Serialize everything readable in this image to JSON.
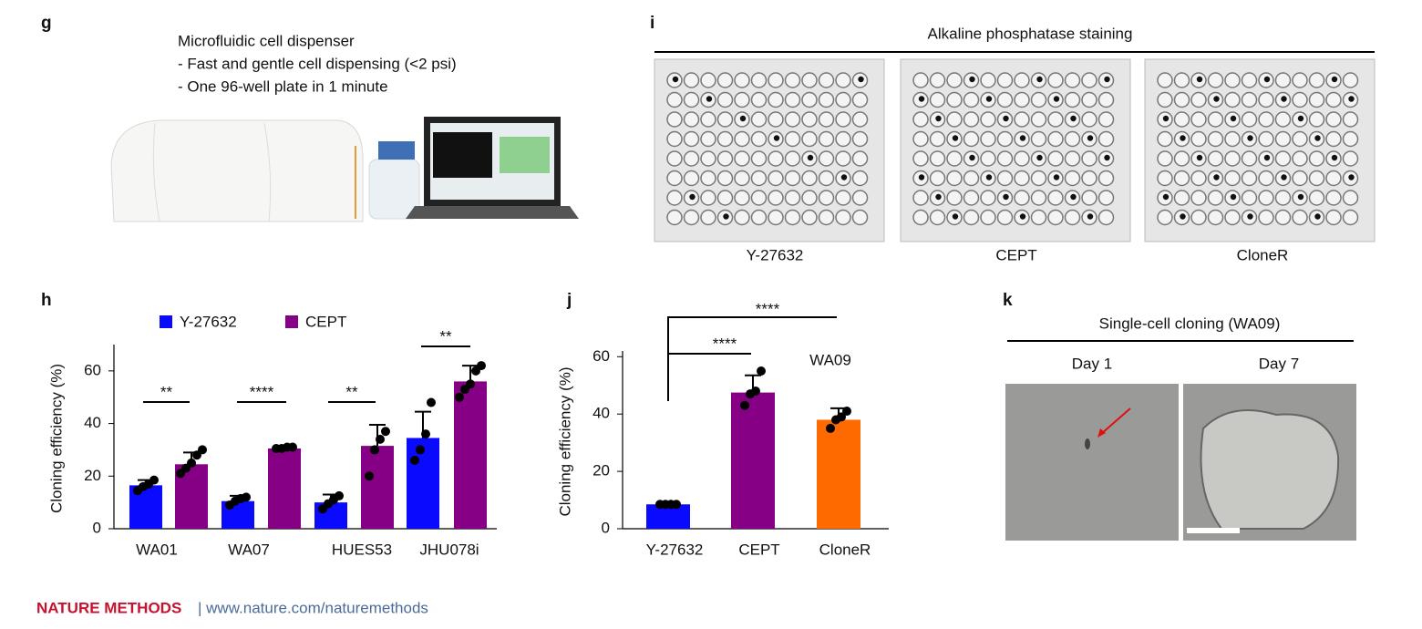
{
  "chart_data": [
    {
      "type": "bar",
      "panel": "h",
      "ylabel": "Cloning efficiency (%)",
      "categories": [
        "WA01",
        "WA07",
        "HUES53",
        "JHU078i"
      ],
      "series": [
        {
          "name": "Y-27632",
          "color": "#0a0aff",
          "values": [
            16.5,
            10.5,
            10,
            34.5
          ],
          "errors": [
            2,
            2,
            3,
            10
          ],
          "points": [
            [
              14.5,
              16,
              17,
              18.5
            ],
            [
              9,
              10.5,
              11.5,
              12
            ],
            [
              7.5,
              9.5,
              11,
              12.5
            ],
            [
              26,
              30,
              36,
              48
            ]
          ]
        },
        {
          "name": "CEPT",
          "color": "#850085",
          "values": [
            24.5,
            30.5,
            31.5,
            56
          ],
          "errors": [
            4.5,
            0.5,
            8,
            6
          ],
          "points": [
            [
              21,
              23,
              25,
              28,
              30
            ],
            [
              30.5,
              30.5,
              31,
              31
            ],
            [
              20,
              30,
              34,
              37
            ],
            [
              50,
              53,
              55,
              60,
              62
            ]
          ]
        }
      ],
      "annotations": [
        "**",
        "****",
        "**",
        "**"
      ],
      "ylim": [
        0,
        70
      ],
      "yticks": [
        0,
        20,
        40,
        60
      ]
    },
    {
      "type": "bar",
      "panel": "j",
      "ylabel": "Cloning efficiency (%)",
      "categories": [
        "Y-27632",
        "CEPT",
        "CloneR"
      ],
      "values": [
        8.5,
        47.5,
        38
      ],
      "errors": [
        0.5,
        6,
        4
      ],
      "colors": [
        "#0a0aff",
        "#850085",
        "#ff6a00"
      ],
      "points": [
        [
          8.5,
          8.5,
          8.5,
          8.5
        ],
        [
          43,
          47,
          48,
          55
        ],
        [
          35,
          38,
          39,
          41
        ]
      ],
      "annotations": [
        "****",
        "****",
        "WA09"
      ],
      "ylim": [
        0,
        62
      ],
      "yticks": [
        0,
        20,
        40,
        60
      ]
    }
  ],
  "panel_g": {
    "letter": "g",
    "lines": [
      "Microfluidic cell dispenser",
      "- Fast and gentle cell dispensing (<2 psi)",
      "- One 96-well plate in 1 minute"
    ]
  },
  "panel_i": {
    "letter": "i",
    "title": "Alkaline phosphatase staining",
    "labels": [
      "Y-27632",
      "CEPT",
      "CloneR"
    ]
  },
  "panel_k": {
    "letter": "k",
    "title": "Single-cell cloning (WA09)",
    "labels": [
      "Day 1",
      "Day 7"
    ]
  },
  "footer": {
    "journal": "NATURE METHODS",
    "url": "| www.nature.com/naturemethods"
  }
}
